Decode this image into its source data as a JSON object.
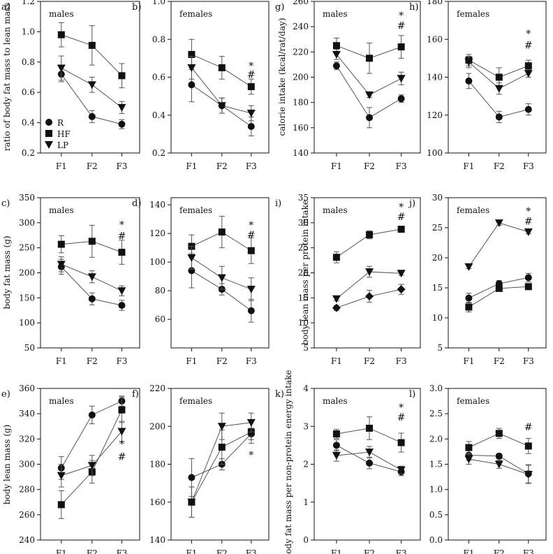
{
  "figure": {
    "x_categories": [
      "F1",
      "F2",
      "F3"
    ],
    "legend": [
      {
        "label": "R",
        "marker": "circle"
      },
      {
        "label": "HF",
        "marker": "square"
      },
      {
        "label": "LP",
        "marker": "triangle-down"
      }
    ],
    "shared_ylabels": [
      {
        "text": "ratio of body fat mass to lean mass"
      },
      {
        "text": "calorie intake (kcal/rat/day)"
      },
      {
        "text": "body fat mass (g)"
      },
      {
        "text": "body lean mass per protein intake"
      },
      {
        "text": "body lean mass (g)"
      },
      {
        "text": "body fat mass per non-protein energy intake"
      }
    ],
    "colors": {
      "ink": "#111111",
      "line": "#555555"
    }
  },
  "chart_data": [
    {
      "id": "a",
      "panel_label": "a)",
      "type": "line",
      "title": "males",
      "categories": [
        "F1",
        "F2",
        "F3"
      ],
      "ylim": [
        0.2,
        1.2
      ],
      "yticks": [
        0.2,
        0.4,
        0.6,
        0.8,
        1.0,
        1.2
      ],
      "ytick_labels": [
        "0.2",
        "0.4",
        "0.6",
        "0.8",
        "1.0",
        "1.2"
      ],
      "series": [
        {
          "name": "R",
          "marker": "circle",
          "values": [
            0.72,
            0.44,
            0.39
          ],
          "errors": [
            0.05,
            0.04,
            0.03
          ]
        },
        {
          "name": "HF",
          "marker": "square",
          "values": [
            0.98,
            0.91,
            0.71
          ],
          "errors": [
            0.08,
            0.13,
            0.08
          ]
        },
        {
          "name": "LP",
          "marker": "triangle-down",
          "values": [
            0.76,
            0.65,
            0.5
          ],
          "errors": [
            0.08,
            0.05,
            0.04
          ]
        }
      ],
      "annotations": []
    },
    {
      "id": "b",
      "panel_label": "b)",
      "type": "line",
      "title": "females",
      "categories": [
        "F1",
        "F2",
        "F3"
      ],
      "ylim": [
        0.2,
        1.0
      ],
      "yticks": [
        0.2,
        0.4,
        0.6,
        0.8,
        1.0
      ],
      "ytick_labels": [
        "0.2",
        "0.4",
        "0.6",
        "0.8",
        "1.0"
      ],
      "series": [
        {
          "name": "R",
          "marker": "circle",
          "values": [
            0.56,
            0.45,
            0.34
          ],
          "errors": [
            0.09,
            0.04,
            0.05
          ]
        },
        {
          "name": "HF",
          "marker": "square",
          "values": [
            0.72,
            0.65,
            0.55
          ],
          "errors": [
            0.08,
            0.06,
            0.04
          ]
        },
        {
          "name": "LP",
          "marker": "triangle-down",
          "values": [
            0.65,
            0.45,
            0.41
          ],
          "errors": [
            0.06,
            0.04,
            0.04
          ]
        }
      ],
      "annotations": [
        {
          "x": "F3",
          "y": 0.66,
          "text": "*"
        },
        {
          "x": "F3",
          "y": 0.615,
          "text": "#"
        }
      ]
    },
    {
      "id": "g",
      "panel_label": "g)",
      "type": "line",
      "title": "males",
      "categories": [
        "F1",
        "F2",
        "F3"
      ],
      "ylim": [
        140,
        260
      ],
      "yticks": [
        140,
        160,
        180,
        200,
        220,
        240,
        260
      ],
      "ytick_labels": [
        "140",
        "160",
        "180",
        "200",
        "220",
        "240",
        "260"
      ],
      "series": [
        {
          "name": "R",
          "marker": "circle",
          "values": [
            209,
            168,
            183
          ],
          "errors": [
            3,
            8,
            3
          ]
        },
        {
          "name": "HF",
          "marker": "square",
          "values": [
            225,
            215,
            224
          ],
          "errors": [
            6,
            12,
            9
          ]
        },
        {
          "name": "LP",
          "marker": "triangle-down",
          "values": [
            218,
            186,
            199
          ],
          "errors": [
            4,
            2,
            5
          ]
        }
      ],
      "annotations": [
        {
          "x": "F3",
          "y": 249,
          "text": "*"
        },
        {
          "x": "F3",
          "y": 241,
          "text": "#"
        }
      ]
    },
    {
      "id": "h",
      "panel_label": "h)",
      "type": "line",
      "title": "females",
      "categories": [
        "F1",
        "F2",
        "F3"
      ],
      "ylim": [
        100,
        180
      ],
      "yticks": [
        100,
        120,
        140,
        160,
        180
      ],
      "ytick_labels": [
        "100",
        "120",
        "140",
        "160",
        "180"
      ],
      "series": [
        {
          "name": "R",
          "marker": "circle",
          "values": [
            138,
            119,
            123
          ],
          "errors": [
            4,
            3,
            3
          ]
        },
        {
          "name": "HF",
          "marker": "square",
          "values": [
            149,
            140,
            146
          ],
          "errors": [
            3,
            5,
            3
          ]
        },
        {
          "name": "LP",
          "marker": "triangle-down",
          "values": [
            148,
            134,
            142
          ],
          "errors": [
            3,
            3,
            2
          ]
        }
      ],
      "annotations": [
        {
          "x": "F3",
          "y": 163,
          "text": "*"
        },
        {
          "x": "F3",
          "y": 157,
          "text": "#"
        }
      ]
    },
    {
      "id": "c",
      "panel_label": "c)",
      "type": "line",
      "title": "males",
      "categories": [
        "F1",
        "F2",
        "F3"
      ],
      "ylim": [
        50,
        350
      ],
      "yticks": [
        50,
        100,
        150,
        200,
        250,
        300,
        350
      ],
      "ytick_labels": [
        "50",
        "100",
        "150",
        "200",
        "250",
        "300",
        "350"
      ],
      "series": [
        {
          "name": "R",
          "marker": "circle",
          "values": [
            212,
            148,
            135
          ],
          "errors": [
            15,
            12,
            10
          ]
        },
        {
          "name": "HF",
          "marker": "square",
          "values": [
            257,
            263,
            241
          ],
          "errors": [
            17,
            32,
            24
          ]
        },
        {
          "name": "LP",
          "marker": "triangle-down",
          "values": [
            217,
            192,
            164
          ],
          "errors": [
            15,
            12,
            10
          ]
        }
      ],
      "annotations": [
        {
          "x": "F3",
          "y": 296,
          "text": "*"
        },
        {
          "x": "F3",
          "y": 274,
          "text": "#"
        }
      ]
    },
    {
      "id": "d",
      "panel_label": "d)",
      "type": "line",
      "title": "females",
      "categories": [
        "F1",
        "F2",
        "F3"
      ],
      "ylim": [
        40,
        145
      ],
      "yticks": [
        60,
        80,
        100,
        120,
        140
      ],
      "ytick_labels": [
        "60",
        "80",
        "100",
        "120",
        "140"
      ],
      "series": [
        {
          "name": "R",
          "marker": "circle",
          "values": [
            94,
            81,
            66
          ],
          "errors": [
            12,
            4,
            8
          ]
        },
        {
          "name": "HF",
          "marker": "square",
          "values": [
            111,
            121,
            108
          ],
          "errors": [
            8,
            11,
            9
          ]
        },
        {
          "name": "LP",
          "marker": "triangle-down",
          "values": [
            103,
            89,
            81
          ],
          "errors": [
            8,
            8,
            8
          ]
        }
      ],
      "annotations": [
        {
          "x": "F3",
          "y": 126,
          "text": "*"
        },
        {
          "x": "F3",
          "y": 119,
          "text": "#"
        }
      ]
    },
    {
      "id": "i",
      "panel_label": "i)",
      "type": "line",
      "title": "males",
      "categories": [
        "F1",
        "F2",
        "F3"
      ],
      "ylim": [
        5,
        35
      ],
      "yticks": [
        5,
        10,
        15,
        20,
        25,
        30,
        35
      ],
      "ytick_labels": [
        "5",
        "10",
        "15",
        "20",
        "25",
        "30",
        "35"
      ],
      "series": [
        {
          "name": "R",
          "marker": "diamond",
          "values": [
            13,
            15.3,
            16.7
          ],
          "errors": [
            0.5,
            1.2,
            1.0
          ]
        },
        {
          "name": "HF",
          "marker": "square",
          "values": [
            23.1,
            27.6,
            28.7
          ],
          "errors": [
            1.1,
            0.8,
            0.4
          ]
        },
        {
          "name": "LP",
          "marker": "triangle-down",
          "values": [
            14.8,
            20.2,
            19.9
          ],
          "errors": [
            0.4,
            1.1,
            0.4
          ]
        }
      ],
      "annotations": [
        {
          "x": "F3",
          "y": 33.2,
          "text": "*"
        },
        {
          "x": "F3",
          "y": 31.2,
          "text": "#"
        }
      ]
    },
    {
      "id": "j",
      "panel_label": "j)",
      "type": "line",
      "title": "females",
      "categories": [
        "F1",
        "F2",
        "F3"
      ],
      "ylim": [
        5,
        30
      ],
      "yticks": [
        5,
        10,
        15,
        20,
        25,
        30
      ],
      "ytick_labels": [
        "5",
        "10",
        "15",
        "20",
        "25",
        "30"
      ],
      "series": [
        {
          "name": "R",
          "marker": "circle",
          "values": [
            13.3,
            15.7,
            16.7
          ],
          "errors": [
            0.8,
            0.5,
            0.7
          ]
        },
        {
          "name": "HF",
          "marker": "square",
          "values": [
            11.8,
            14.9,
            15.2
          ],
          "errors": [
            0.8,
            0.4,
            0.3
          ]
        },
        {
          "name": "LP",
          "marker": "triangle-down",
          "values": [
            18.5,
            25.8,
            24.3
          ],
          "errors": [
            0.3,
            0.4,
            0.3
          ]
        }
      ],
      "annotations": [
        {
          "x": "F3",
          "y": 27.8,
          "text": "*"
        },
        {
          "x": "F3",
          "y": 26.1,
          "text": "#"
        }
      ]
    },
    {
      "id": "e",
      "panel_label": "e)",
      "type": "line",
      "title": "males",
      "categories": [
        "F1",
        "F2",
        "F3"
      ],
      "ylim": [
        240,
        360
      ],
      "yticks": [
        240,
        260,
        280,
        300,
        320,
        340,
        360
      ],
      "ytick_labels": [
        "240",
        "260",
        "280",
        "300",
        "320",
        "340",
        "360"
      ],
      "series": [
        {
          "name": "R",
          "marker": "circle",
          "values": [
            297,
            339,
            350
          ],
          "errors": [
            9,
            7,
            4
          ]
        },
        {
          "name": "HF",
          "marker": "square",
          "values": [
            268,
            294,
            343
          ],
          "errors": [
            11,
            9,
            10
          ]
        },
        {
          "name": "LP",
          "marker": "triangle-down",
          "values": [
            291,
            299,
            326
          ],
          "errors": [
            9,
            8,
            8
          ]
        }
      ],
      "annotations": [
        {
          "x": "F3",
          "y": 316,
          "text": "*"
        },
        {
          "x": "F3",
          "y": 306,
          "text": "#"
        }
      ]
    },
    {
      "id": "f",
      "panel_label": "f)",
      "type": "line",
      "title": "females",
      "categories": [
        "F1",
        "F2",
        "F3"
      ],
      "ylim": [
        140,
        220
      ],
      "yticks": [
        140,
        160,
        180,
        200,
        220
      ],
      "ytick_labels": [
        "140",
        "160",
        "180",
        "200",
        "220"
      ],
      "series": [
        {
          "name": "R",
          "marker": "circle",
          "values": [
            173,
            180,
            196
          ],
          "errors": [
            10,
            3,
            3
          ]
        },
        {
          "name": "HF",
          "marker": "square",
          "values": [
            160,
            189,
            197
          ],
          "errors": [
            8,
            9,
            6
          ]
        },
        {
          "name": "LP",
          "marker": "triangle-down",
          "values": [
            160,
            200,
            202
          ],
          "errors": [
            8,
            7,
            5
          ]
        }
      ],
      "annotations": [
        {
          "x": "F3",
          "y": 185,
          "text": "*"
        }
      ]
    },
    {
      "id": "k",
      "panel_label": "k)",
      "type": "line",
      "title": "males",
      "categories": [
        "F1",
        "F2",
        "F3"
      ],
      "ylim": [
        0,
        4
      ],
      "yticks": [
        0,
        1,
        2,
        3,
        4
      ],
      "ytick_labels": [
        "0",
        "1",
        "2",
        "3",
        "4"
      ],
      "series": [
        {
          "name": "R",
          "marker": "circle",
          "values": [
            2.5,
            2.03,
            1.8
          ],
          "errors": [
            0.15,
            0.15,
            0.1
          ]
        },
        {
          "name": "HF",
          "marker": "square",
          "values": [
            2.8,
            2.95,
            2.57
          ],
          "errors": [
            0.12,
            0.3,
            0.25
          ]
        },
        {
          "name": "LP",
          "marker": "triangle-down",
          "values": [
            2.23,
            2.32,
            1.85
          ],
          "errors": [
            0.15,
            0.15,
            0.1
          ]
        }
      ],
      "annotations": [
        {
          "x": "F3",
          "y": 3.5,
          "text": "*"
        },
        {
          "x": "F3",
          "y": 3.24,
          "text": "#"
        }
      ]
    },
    {
      "id": "l",
      "panel_label": "l)",
      "type": "line",
      "title": "females",
      "categories": [
        "F1",
        "F2",
        "F3"
      ],
      "ylim": [
        0,
        3
      ],
      "yticks": [
        0,
        0.5,
        1.0,
        1.5,
        2.0,
        2.5,
        3.0
      ],
      "ytick_labels": [
        "0.0",
        "0.5",
        "1.0",
        "1.5",
        "2.0",
        "2.5",
        "3.0"
      ],
      "series": [
        {
          "name": "R",
          "marker": "circle",
          "values": [
            1.68,
            1.66,
            1.31
          ],
          "errors": [
            0.1,
            0.05,
            0.18
          ]
        },
        {
          "name": "HF",
          "marker": "square",
          "values": [
            1.83,
            2.11,
            1.86
          ],
          "errors": [
            0.12,
            0.1,
            0.15
          ]
        },
        {
          "name": "LP",
          "marker": "triangle-down",
          "values": [
            1.6,
            1.5,
            1.3
          ],
          "errors": [
            0.1,
            0.08,
            0.18
          ]
        }
      ],
      "annotations": [
        {
          "x": "F3",
          "y": 2.24,
          "text": "#"
        }
      ]
    }
  ]
}
